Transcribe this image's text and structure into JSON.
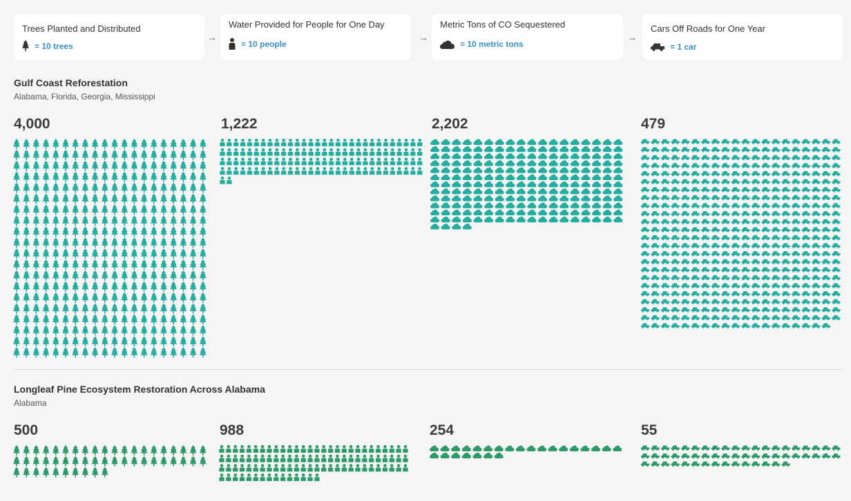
{
  "colors": {
    "teal": "#26ada0",
    "green": "#2e9a6a",
    "legend_value": "#3a8fc6",
    "legend_icon": "#333333"
  },
  "legend": [
    {
      "title": "Trees Planted and Distributed",
      "icon": "tree-icon",
      "value": "= 10 trees"
    },
    {
      "title": "Water Provided for People for One Day",
      "icon": "person-icon",
      "value": "= 10 people"
    },
    {
      "title": "Metric Tons of CO   Sequestered",
      "icon": "cloud-icon",
      "value": "= 10 metric tons"
    },
    {
      "title": "Cars Off Roads for One Year",
      "icon": "car-icon",
      "value": "= 1 car"
    }
  ],
  "legend_arrow": "→",
  "sections": [
    {
      "title": "Gulf Coast Reforestation",
      "subtitle": "Alabama, Florida, Georgia, Mississippi",
      "color": "#26ada0",
      "metrics": [
        {
          "label": "4,000",
          "icon": "tree-icon",
          "icons": 400,
          "cols": 20
        },
        {
          "label": "1,222",
          "icon": "person-icon",
          "icons": 122,
          "cols": 30
        },
        {
          "label": "2,202",
          "icon": "cloud-icon",
          "icons": 220,
          "cols": 18
        },
        {
          "label": "479",
          "icon": "car-icon",
          "icons": 479,
          "cols": 20
        }
      ]
    },
    {
      "title": "Longleaf Pine Ecosystem Restoration Across Alabama",
      "subtitle": "Alabama",
      "color": "#2e9a6a",
      "metrics": [
        {
          "label": "500",
          "icon": "tree-icon",
          "icons": 50,
          "cols": 20
        },
        {
          "label": "988",
          "icon": "person-icon",
          "icons": 99,
          "cols": 28
        },
        {
          "label": "254",
          "icon": "cloud-icon",
          "icons": 25,
          "cols": 18
        },
        {
          "label": "55",
          "icon": "car-icon",
          "icons": 55,
          "cols": 20
        }
      ]
    }
  ],
  "chart_data": {
    "type": "table",
    "columns": [
      "Trees Planted and Distributed",
      "Water Provided for People for One Day",
      "Metric Tons of CO   Sequestered",
      "Cars Off Roads for One Year"
    ],
    "rows": [
      {
        "name": "Gulf Coast Reforestation",
        "values": [
          4000,
          1222,
          2202,
          479
        ]
      },
      {
        "name": "Longleaf Pine Ecosystem Restoration Across Alabama",
        "values": [
          500,
          988,
          254,
          55
        ]
      }
    ],
    "units_per_icon": [
      10,
      10,
      10,
      1
    ]
  }
}
